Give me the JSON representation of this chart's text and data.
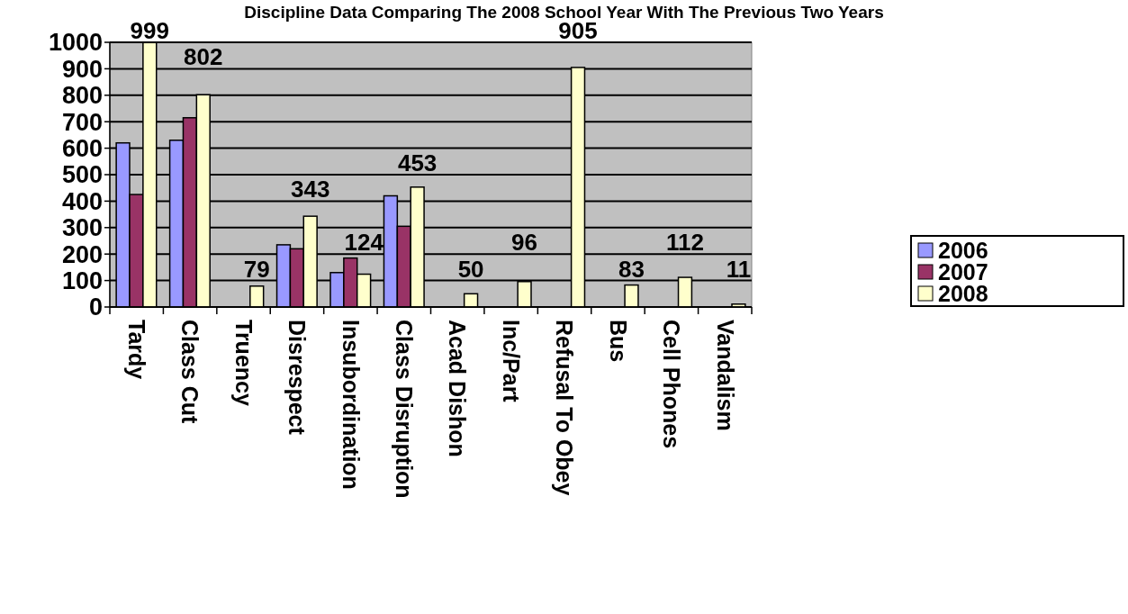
{
  "chart_data": {
    "type": "bar",
    "title": "Discipline Data Comparing The 2008 School Year With The Previous Two Years",
    "categories": [
      "Tardy",
      "Class Cut",
      "Truency",
      "Disrespect",
      "Insubordination",
      "Class Disruption",
      "Acad Dishon",
      "Inc/Part",
      "Refusal To Obey",
      "Bus",
      "Cell Phones",
      "Vandalism"
    ],
    "series": [
      {
        "name": "2006",
        "color": "#9999ff",
        "values": [
          620,
          630,
          null,
          235,
          130,
          420,
          null,
          null,
          null,
          null,
          null,
          null
        ]
      },
      {
        "name": "2007",
        "color": "#993366",
        "values": [
          425,
          715,
          null,
          220,
          185,
          305,
          null,
          null,
          null,
          null,
          null,
          null
        ]
      },
      {
        "name": "2008",
        "color": "#ffffcc",
        "values": [
          999,
          802,
          79,
          343,
          124,
          453,
          50,
          96,
          905,
          83,
          112,
          11
        ],
        "value_labels": [
          "999",
          "802",
          "79",
          "343",
          "124",
          "453",
          "50",
          "96",
          "905",
          "83",
          "112",
          "11"
        ]
      }
    ],
    "ylim": [
      0,
      1000
    ],
    "yticks": [
      0,
      100,
      200,
      300,
      400,
      500,
      600,
      700,
      800,
      900,
      1000
    ],
    "grid": "y",
    "legend": "right"
  }
}
